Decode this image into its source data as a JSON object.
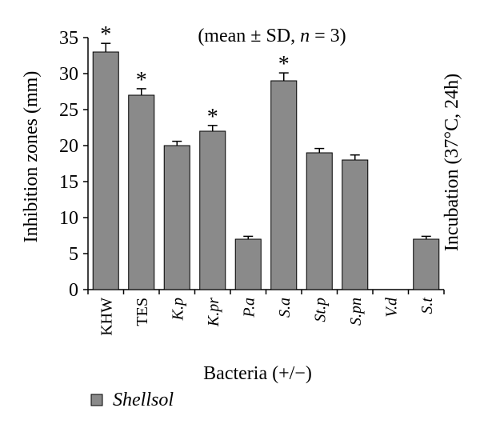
{
  "chart_data": {
    "type": "bar",
    "categories": [
      "KHW",
      "TES",
      "K.p",
      "K.pr",
      "P.a",
      "S.a",
      "St.p",
      "S.pn",
      "V.d",
      "S.t"
    ],
    "category_italic": [
      false,
      false,
      true,
      true,
      true,
      true,
      true,
      true,
      true,
      true
    ],
    "series": [
      {
        "name": "Shellsol",
        "values": [
          33,
          27,
          20,
          22,
          7,
          29,
          19,
          18,
          0,
          7
        ],
        "errors": [
          1.2,
          0.9,
          0.6,
          0.8,
          0.4,
          1.1,
          0.6,
          0.7,
          0,
          0.4
        ],
        "significant": [
          true,
          true,
          false,
          true,
          false,
          true,
          false,
          false,
          false,
          false
        ]
      }
    ],
    "significance_marker": "*",
    "ylabel": "Inhibition zones (mm)",
    "xlabel": "Bacteria (+/−)",
    "y2label": "Incubation (37°C, 24h)",
    "annotation": "(mean ± SD, n = 3)",
    "yticks": [
      0,
      5,
      10,
      15,
      20,
      25,
      30,
      35
    ],
    "ylim": [
      0,
      35
    ],
    "grid": false,
    "legend_position": "bottom-left",
    "colors": {
      "bar": "#8a8a8a",
      "bar_stroke": "#000000",
      "axis": "#000000"
    }
  }
}
